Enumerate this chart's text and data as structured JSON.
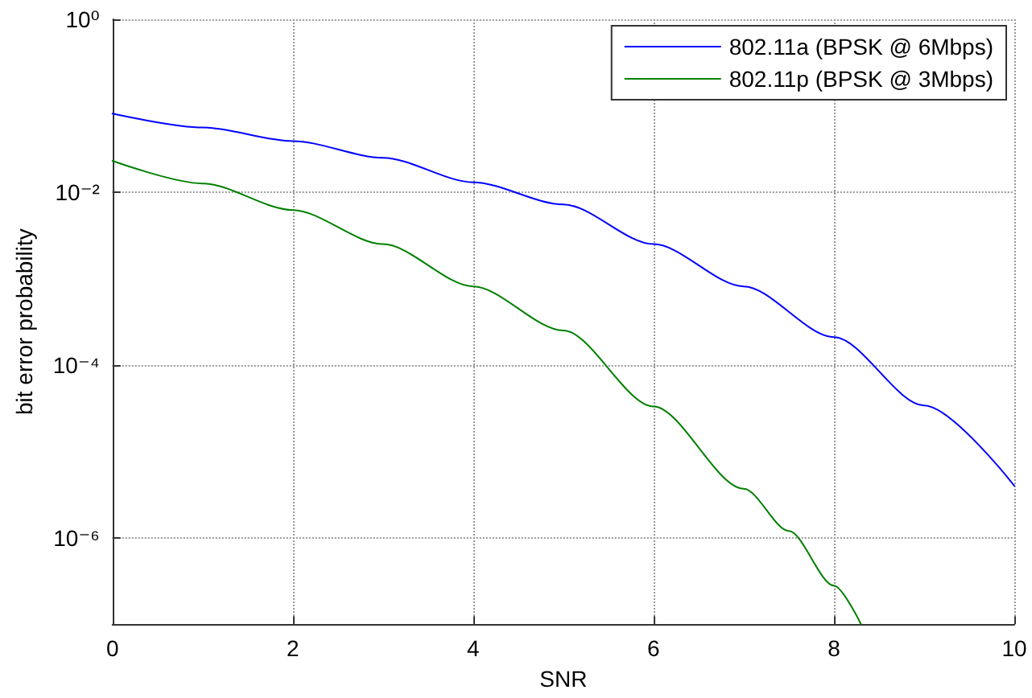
{
  "chart_data": {
    "type": "line",
    "xlabel": "SNR",
    "ylabel": "bit error probability",
    "x": [
      0,
      1,
      2,
      3,
      4,
      5,
      6,
      7,
      8,
      9,
      10
    ],
    "series": [
      {
        "name": "802.11a (BPSK @ 6Mbps)",
        "color": "#0000ff",
        "values": [
          0.081,
          0.056,
          0.039,
          0.025,
          0.013,
          0.0072,
          0.0025,
          0.00081,
          0.00021,
          3.4e-05,
          4e-06
        ]
      },
      {
        "name": "802.11p (BPSK @ 3Mbps)",
        "color": "#008000",
        "x": [
          0,
          1,
          2,
          3,
          4,
          5,
          6,
          7,
          7.5,
          8,
          8.3
        ],
        "values": [
          0.023,
          0.0126,
          0.0062,
          0.0025,
          0.00081,
          0.00025,
          3.3e-05,
          3.7e-06,
          1.2e-06,
          2.8e-07,
          1e-07
        ]
      }
    ],
    "xlim": [
      0,
      10
    ],
    "xticks": [
      0,
      2,
      4,
      6,
      8,
      10
    ],
    "ylim": [
      1e-07,
      1
    ],
    "yticks": [
      {
        "value": 1,
        "label": "10⁰"
      },
      {
        "value": 0.01,
        "label": "10⁻²"
      },
      {
        "value": 0.0001,
        "label": "10⁻⁴"
      },
      {
        "value": 1e-06,
        "label": "10⁻⁶"
      }
    ],
    "log": "y",
    "grid": true,
    "legend": "top right",
    "marker": "none",
    "line_style": "solid"
  }
}
